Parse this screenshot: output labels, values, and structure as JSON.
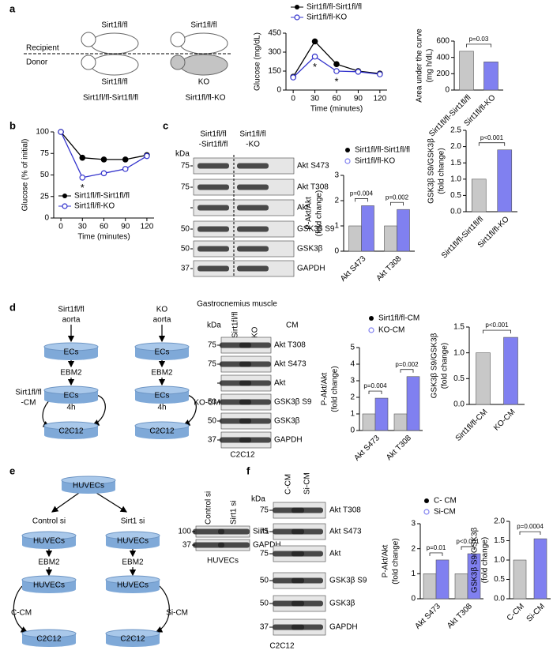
{
  "panel_labels": [
    "a",
    "b",
    "c",
    "d",
    "e",
    "f"
  ],
  "diagram_a": {
    "recipient": "Recipient",
    "donor": "Donor",
    "mouse_labels": [
      "Sirt1fl/fl",
      "Sirt1fl/fl",
      "Sirt1fl/fl",
      "KO"
    ],
    "captions": [
      "Sirt1fl/fl-Sirt1fl/fl",
      "Sirt1fl/fl-KO"
    ]
  },
  "diagram_d": {
    "left": {
      "source": "Sirt1fl/fl",
      "tissue": "aorta",
      "cells": "ECs",
      "medium": "EBM2",
      "cells_2": "ECs",
      "time": "4h",
      "target": "C2C12",
      "output": [
        "Sirt1fl/fl",
        "-CM"
      ]
    },
    "right": {
      "source": "KO",
      "tissue": "aorta",
      "cells": "ECs",
      "medium": "EBM2",
      "cells_2": "ECs",
      "time": "4h",
      "target": "C2C12",
      "output": [
        "KO-CM"
      ]
    }
  },
  "diagram_e": {
    "top": "HUVECs",
    "left": {
      "treatment": "Control si",
      "cells": "HUVECs",
      "medium": "EBM2",
      "cells_2": "HUVECs",
      "output": "C-CM",
      "target": "C2C12"
    },
    "right": {
      "treatment": "Sirt1 si",
      "cells": "HUVECs",
      "medium": "EBM2",
      "cells_2": "HUVECs",
      "output": "Si-CM",
      "target": "C2C12"
    }
  },
  "blots": [
    {
      "lanes": [
        [
          "Sirt1fl/fl",
          "-Sirt1fl/fl"
        ],
        [
          "Sirt1fl/fl",
          "-KO"
        ]
      ],
      "kda": "kDa",
      "markers": [
        "75",
        "75",
        null,
        "50",
        "50",
        "37"
      ],
      "bands": [
        "Akt S473",
        "Akt T308",
        "Akt",
        "GSK3β S9",
        "GSK3β",
        "GAPDH"
      ],
      "caption": "Gastrocnemius muscle"
    },
    {
      "lanes": [
        [
          "Sirt1fl/fl"
        ],
        [
          "KO"
        ]
      ],
      "kda": "kDa",
      "treatment": "CM",
      "markers": [
        "75",
        "75",
        null,
        "50",
        "50",
        "37"
      ],
      "bands": [
        "Akt T308",
        "Akt S473",
        "Akt",
        "GSK3β S9",
        "GSK3β",
        "GAPDH"
      ],
      "caption": "C2C12"
    },
    {
      "lanes": [
        [
          "Control si"
        ],
        [
          "Sirt1 si"
        ]
      ],
      "markers": [
        "100",
        "37"
      ],
      "bands": [
        "Sirt1",
        "GAPDH"
      ],
      "caption": "HUVECs"
    },
    {
      "lanes": [
        [
          "C-CM"
        ],
        [
          "Si-CM"
        ]
      ],
      "kda": "kDa",
      "markers": [
        "75",
        "75",
        "75",
        "50",
        "50",
        "37"
      ],
      "bands": [
        "Akt T308",
        "Akt S473",
        "Akt",
        "GSK3β S9",
        "GSK3β",
        "GAPDH"
      ],
      "caption": "C2C12"
    }
  ],
  "chart_data": [
    {
      "type": "line",
      "x": [
        0,
        30,
        60,
        90,
        120
      ],
      "xlim": [
        -10,
        130
      ],
      "xticks": [
        0,
        30,
        60,
        90,
        120
      ],
      "ylim": [
        0,
        450
      ],
      "yticks": [
        0,
        150,
        300,
        450
      ],
      "x_label": "Time (minutes)",
      "y_label": "Glucose (mg/dL)",
      "series": [
        {
          "name": "Sirt1fl/fl-Sirt1fl/fl",
          "color": "#000000",
          "values": [
            105,
            385,
            205,
            150,
            130
          ]
        },
        {
          "name": "Sirt1fl/fl-KO",
          "color": "#3333cc",
          "values": [
            100,
            265,
            150,
            145,
            125
          ]
        }
      ],
      "annotations": [
        "*",
        "*"
      ]
    },
    {
      "type": "bar",
      "categories": [
        "Sirt1fl/fl-Sirt1fl/fl",
        "Sirt1fl/fl-KO"
      ],
      "values": [
        475,
        345
      ],
      "colors": [
        "#c8c8c8",
        "#8080f0"
      ],
      "ylim": [
        0,
        600
      ],
      "yticks": [
        0,
        200,
        400,
        600
      ],
      "y_label": [
        "Area under the curve",
        "(mg h/dL)"
      ],
      "p_values": [
        "p=0.03"
      ]
    },
    {
      "type": "line",
      "x": [
        0,
        30,
        60,
        90,
        120
      ],
      "xlim": [
        -10,
        130
      ],
      "xticks": [
        0,
        30,
        60,
        90,
        120
      ],
      "ylim": [
        0,
        100
      ],
      "yticks": [
        0,
        25,
        50,
        75,
        100
      ],
      "x_label": "Time (minutes)",
      "y_label": "Glucose (% of initial)",
      "series": [
        {
          "name": "Sirt1fl/fl-Sirt1fl/fl",
          "color": "#000000",
          "values": [
            100,
            70,
            68,
            68,
            73
          ]
        },
        {
          "name": "Sirt1fl/fl-KO",
          "color": "#3333cc",
          "values": [
            100,
            47,
            52,
            57,
            72
          ]
        }
      ],
      "annotations": [
        "*"
      ]
    },
    {
      "type": "bar",
      "categories": [
        "Akt S473",
        "Akt T308"
      ],
      "series": [
        {
          "name": "Sirt1fl/fl-Sirt1fl/fl",
          "color": "#c8c8c8",
          "values": [
            1.0,
            1.0
          ]
        },
        {
          "name": "Sirt1fl/fl-KO",
          "color": "#8080f0",
          "values": [
            1.8,
            1.65
          ]
        }
      ],
      "ylim": [
        0,
        3
      ],
      "yticks": [
        0,
        1,
        2,
        3
      ],
      "y_label": [
        "P-Akt/Akt",
        "(fold change)"
      ],
      "p_values": [
        "p=0.004",
        "p=0.002"
      ]
    },
    {
      "type": "bar",
      "categories": [
        "Sirt1fl/fl-Sirt1fl/fl",
        "Sirt1fl/fl-KO"
      ],
      "values": [
        1.0,
        1.9
      ],
      "colors": [
        "#c8c8c8",
        "#8080f0"
      ],
      "ylim": [
        0,
        2.5
      ],
      "yticks": [
        {
          "value": 0,
          "label": "0.0"
        },
        0.5,
        {
          "value": 1,
          "label": "1.0"
        },
        1.5,
        {
          "value": 2,
          "label": "2.0"
        },
        2.5
      ],
      "y_label": [
        "GSK3β S9/GSK3β",
        "(fold change)"
      ],
      "p_values": [
        "p<0.001"
      ]
    },
    {
      "type": "bar",
      "categories": [
        "Akt S473",
        "Akt T308"
      ],
      "series": [
        {
          "name": "Sirt1fl/fl-CM",
          "color": "#c8c8c8",
          "values": [
            1.0,
            1.0
          ]
        },
        {
          "name": "KO-CM",
          "color": "#8080f0",
          "values": [
            1.95,
            3.25
          ]
        }
      ],
      "ylim": [
        0,
        5
      ],
      "yticks": [
        0,
        1,
        2,
        3,
        4,
        5
      ],
      "y_label": [
        "P-Akt/Akt",
        "(fold change)"
      ],
      "p_values": [
        "p=0.004",
        "p=0.002"
      ]
    },
    {
      "type": "bar",
      "categories": [
        "Sirt1fl/fl-CM",
        "KO-CM"
      ],
      "values": [
        1.0,
        1.3
      ],
      "colors": [
        "#c8c8c8",
        "#8080f0"
      ],
      "ylim": [
        0,
        1.5
      ],
      "yticks": [
        {
          "value": 0,
          "label": "0.0"
        },
        0.5,
        {
          "value": 1,
          "label": "1.0"
        },
        1.5
      ],
      "y_label": [
        "GSK3β S9/GSK3β",
        "(fold change)"
      ],
      "p_values": [
        "p<0.001"
      ]
    },
    {
      "type": "bar",
      "categories": [
        "Akt S473",
        "Akt T308"
      ],
      "series": [
        {
          "name": "C- CM",
          "color": "#c8c8c8",
          "values": [
            1.0,
            1.0
          ]
        },
        {
          "name": "Si-CM",
          "color": "#8080f0",
          "values": [
            1.55,
            1.8
          ]
        }
      ],
      "ylim": [
        0,
        3
      ],
      "yticks": [
        0,
        1,
        2,
        3
      ],
      "y_label": [
        "P-Akt/Akt",
        "(fold change)"
      ],
      "p_values": [
        "p=0.01",
        "p<0.001"
      ]
    },
    {
      "type": "bar",
      "categories": [
        "C-CM",
        "Si-CM"
      ],
      "values": [
        1.0,
        1.55
      ],
      "colors": [
        "#c8c8c8",
        "#8080f0"
      ],
      "ylim": [
        0,
        2.0
      ],
      "yticks": [
        {
          "value": 0,
          "label": "0.0"
        },
        0.5,
        {
          "value": 1,
          "label": "1.0"
        },
        1.5,
        {
          "value": 2,
          "label": "2.0"
        }
      ],
      "y_label": [
        "GSK3β S9/GSK3β",
        "(fold change)"
      ],
      "p_values": [
        "p=0.0004"
      ]
    }
  ]
}
